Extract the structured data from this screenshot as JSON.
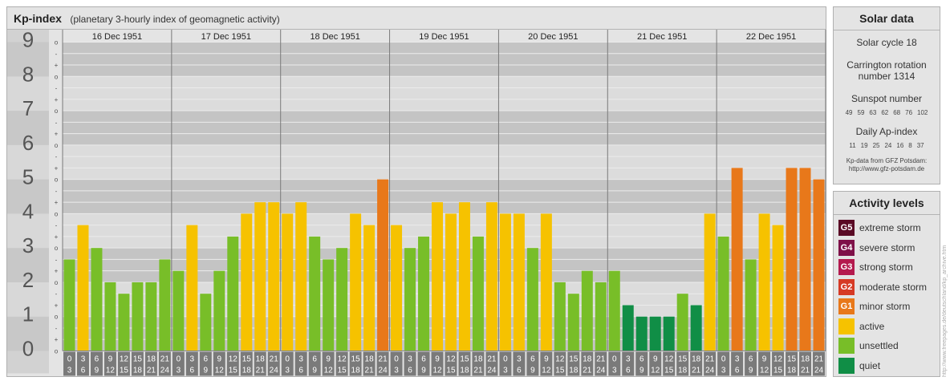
{
  "header": {
    "title": "Kp-index",
    "subtitle": "(planetary 3-hourly index of geomagnetic activity)"
  },
  "chart_data": {
    "type": "bar",
    "ylim": [
      0,
      9
    ],
    "y_ticks": [
      "0",
      "1",
      "2",
      "3",
      "4",
      "5",
      "6",
      "7",
      "8",
      "9"
    ],
    "minor_labels": [
      "-",
      "o",
      "+"
    ],
    "days": [
      "16 Dec 1951",
      "17 Dec 1951",
      "18 Dec 1951",
      "19 Dec 1951",
      "20 Dec 1951",
      "21 Dec 1951",
      "22 Dec 1951"
    ],
    "interval_top": [
      "0",
      "3",
      "6",
      "9",
      "12",
      "15",
      "18",
      "21"
    ],
    "interval_bottom": [
      "3",
      "6",
      "9",
      "12",
      "15",
      "18",
      "21",
      "24"
    ],
    "values": [
      [
        2.667,
        3.667,
        3.0,
        2.0,
        1.667,
        2.0,
        2.0,
        2.667
      ],
      [
        2.333,
        3.667,
        1.667,
        2.333,
        3.333,
        4.0,
        4.333,
        4.333
      ],
      [
        4.0,
        4.333,
        3.333,
        2.667,
        3.0,
        4.0,
        3.667,
        5.0
      ],
      [
        3.667,
        3.0,
        3.333,
        4.333,
        4.0,
        4.333,
        3.333,
        4.333
      ],
      [
        4.0,
        4.0,
        3.0,
        4.0,
        2.0,
        1.667,
        2.333,
        2.0
      ],
      [
        2.333,
        1.333,
        1.0,
        1.0,
        1.0,
        1.667,
        1.333,
        4.0
      ],
      [
        3.333,
        5.333,
        2.667,
        4.0,
        3.667,
        5.333,
        5.333,
        5.0
      ]
    ]
  },
  "solar": {
    "title": "Solar data",
    "cycle": "Solar cycle 18",
    "carrington_line1": "Carrington rotation",
    "carrington_line2": "number 1314",
    "sunspot_title": "Sunspot number",
    "sunspot_values": [
      "49",
      "59",
      "63",
      "62",
      "68",
      "76",
      "102"
    ],
    "ap_title": "Daily Ap-index",
    "ap_values": [
      "11",
      "19",
      "25",
      "24",
      "16",
      "8",
      "37"
    ],
    "credit_line1": "Kp-data from GFZ Potsdam:",
    "credit_line2": "http://www.gfz-potsdam.de"
  },
  "activity": {
    "title": "Activity levels",
    "levels": [
      {
        "code": "G5",
        "label": "extreme storm",
        "color": "#5a0a25"
      },
      {
        "code": "G4",
        "label": "severe storm",
        "color": "#7e1048"
      },
      {
        "code": "G3",
        "label": "strong storm",
        "color": "#b41a4e"
      },
      {
        "code": "G2",
        "label": "moderate storm",
        "color": "#d63a25"
      },
      {
        "code": "G1",
        "label": "minor storm",
        "color": "#e8781a"
      },
      {
        "code": "",
        "label": "active",
        "color": "#f6c200"
      },
      {
        "code": "",
        "label": "unsettled",
        "color": "#78be28"
      },
      {
        "code": "",
        "label": "quiet",
        "color": "#108e46"
      }
    ]
  },
  "watermark": "http://www.freepages.de/deutschland/kp_archive.htm"
}
